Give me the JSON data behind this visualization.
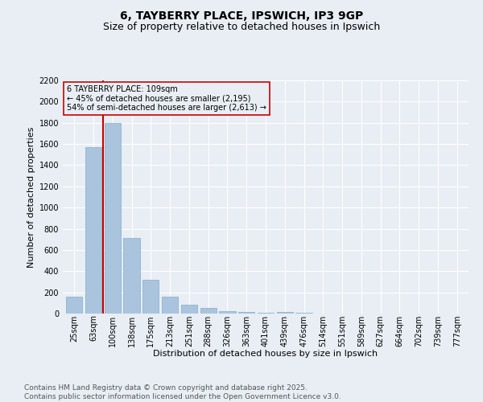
{
  "title": "6, TAYBERRY PLACE, IPSWICH, IP3 9GP",
  "subtitle": "Size of property relative to detached houses in Ipswich",
  "xlabel": "Distribution of detached houses by size in Ipswich",
  "ylabel": "Number of detached properties",
  "categories": [
    "25sqm",
    "63sqm",
    "100sqm",
    "138sqm",
    "175sqm",
    "213sqm",
    "251sqm",
    "288sqm",
    "326sqm",
    "363sqm",
    "401sqm",
    "439sqm",
    "476sqm",
    "514sqm",
    "551sqm",
    "589sqm",
    "627sqm",
    "664sqm",
    "702sqm",
    "739sqm",
    "777sqm"
  ],
  "values": [
    160,
    1570,
    1800,
    715,
    320,
    160,
    85,
    50,
    25,
    15,
    10,
    12,
    8,
    0,
    0,
    0,
    0,
    0,
    0,
    0,
    0
  ],
  "bar_color": "#aac4de",
  "bar_edgecolor": "#7faecb",
  "bg_color": "#e8eef4",
  "grid_color": "#ffffff",
  "vline_color": "#cc0000",
  "vline_x_index": 2,
  "annotation_text": "6 TAYBERRY PLACE: 109sqm\n← 45% of detached houses are smaller (2,195)\n54% of semi-detached houses are larger (2,613) →",
  "annotation_box_edgecolor": "#cc0000",
  "ylim_max": 2200,
  "yticks": [
    0,
    200,
    400,
    600,
    800,
    1000,
    1200,
    1400,
    1600,
    1800,
    2000,
    2200
  ],
  "footer_line1": "Contains HM Land Registry data © Crown copyright and database right 2025.",
  "footer_line2": "Contains public sector information licensed under the Open Government Licence v3.0.",
  "title_fontsize": 10,
  "subtitle_fontsize": 9,
  "axis_label_fontsize": 8,
  "tick_fontsize": 7,
  "annotation_fontsize": 7,
  "footer_fontsize": 6.5
}
